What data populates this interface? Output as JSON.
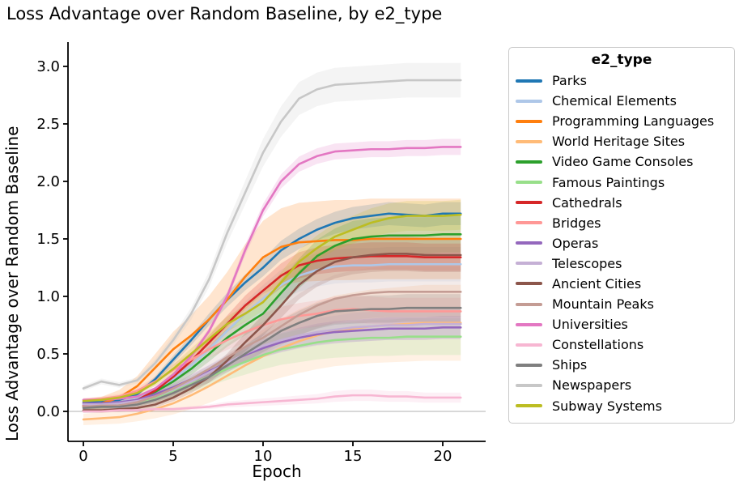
{
  "title": "Loss Advantage over Random Baseline, by e2_type",
  "colors": {
    "background": "#ffffff",
    "spine": "#000000",
    "baseline": "#b0b0b0",
    "legend_border": "#c9c9c9",
    "text": "#000000"
  },
  "chart_data": {
    "type": "line",
    "title": "Loss Advantage over Random Baseline, by e2_type",
    "xlabel": "Epoch",
    "ylabel": "Loss Advantage over Random Baseline",
    "legend_title": "e2_type",
    "legend_position": "right-outside",
    "grid": false,
    "baseline_y": 0,
    "band_alpha": 0.2,
    "xlim": [
      -0.9,
      22.4
    ],
    "ylim": [
      -0.26,
      3.21
    ],
    "x_ticks": [
      0,
      5,
      10,
      15,
      20
    ],
    "x_tick_labels": [
      "0",
      "5",
      "10",
      "15",
      "20"
    ],
    "y_ticks": [
      0.0,
      0.5,
      1.0,
      1.5,
      2.0,
      2.5,
      3.0
    ],
    "y_tick_labels": [
      "0.0",
      "0.5",
      "1.0",
      "1.5",
      "2.0",
      "2.5",
      "3.0"
    ],
    "x": [
      0,
      1,
      2,
      3,
      4,
      5,
      6,
      7,
      8,
      9,
      10,
      11,
      12,
      13,
      14,
      15,
      16,
      17,
      18,
      19,
      20,
      21
    ],
    "series": [
      {
        "name": "Parks",
        "color": "#1f77b4",
        "band": 0.1,
        "values": [
          0.08,
          0.09,
          0.1,
          0.15,
          0.28,
          0.45,
          0.62,
          0.8,
          0.97,
          1.12,
          1.25,
          1.4,
          1.5,
          1.58,
          1.64,
          1.68,
          1.7,
          1.72,
          1.71,
          1.7,
          1.72,
          1.72
        ]
      },
      {
        "name": "Chemical Elements",
        "color": "#aec7e8",
        "band": 0.15,
        "values": [
          0.06,
          0.07,
          0.08,
          0.11,
          0.18,
          0.28,
          0.4,
          0.54,
          0.7,
          0.85,
          0.98,
          1.1,
          1.18,
          1.23,
          1.26,
          1.27,
          1.27,
          1.28,
          1.28,
          1.28,
          1.28,
          1.28
        ]
      },
      {
        "name": "Programming Languages",
        "color": "#ff7f0e",
        "band": 0.35,
        "values": [
          0.05,
          0.07,
          0.12,
          0.22,
          0.38,
          0.54,
          0.66,
          0.8,
          0.97,
          1.17,
          1.34,
          1.43,
          1.47,
          1.48,
          1.49,
          1.49,
          1.5,
          1.5,
          1.5,
          1.5,
          1.5,
          1.5
        ]
      },
      {
        "name": "World Heritage Sites",
        "color": "#ffbb78",
        "band": 0.33,
        "values": [
          -0.07,
          -0.06,
          -0.05,
          -0.02,
          0.02,
          0.07,
          0.14,
          0.22,
          0.31,
          0.4,
          0.48,
          0.55,
          0.61,
          0.66,
          0.7,
          0.72,
          0.74,
          0.75,
          0.76,
          0.77,
          0.77,
          0.77
        ]
      },
      {
        "name": "Video Game Consoles",
        "color": "#2ca02c",
        "band": 0.16,
        "values": [
          0.04,
          0.05,
          0.06,
          0.1,
          0.17,
          0.26,
          0.37,
          0.5,
          0.64,
          0.75,
          0.85,
          1.03,
          1.2,
          1.35,
          1.44,
          1.5,
          1.52,
          1.53,
          1.53,
          1.53,
          1.54,
          1.54
        ]
      },
      {
        "name": "Famous Paintings",
        "color": "#98df8a",
        "band": 0.16,
        "values": [
          0.05,
          0.05,
          0.06,
          0.08,
          0.12,
          0.18,
          0.24,
          0.3,
          0.37,
          0.43,
          0.49,
          0.54,
          0.57,
          0.6,
          0.62,
          0.63,
          0.64,
          0.64,
          0.65,
          0.65,
          0.65,
          0.65
        ]
      },
      {
        "name": "Cathedrals",
        "color": "#d62728",
        "band": 0.12,
        "values": [
          0.05,
          0.06,
          0.07,
          0.1,
          0.18,
          0.3,
          0.44,
          0.6,
          0.76,
          0.92,
          1.05,
          1.18,
          1.27,
          1.31,
          1.33,
          1.34,
          1.35,
          1.35,
          1.35,
          1.34,
          1.34,
          1.34
        ]
      },
      {
        "name": "Bridges",
        "color": "#ff9896",
        "band": 0.12,
        "values": [
          0.1,
          0.11,
          0.13,
          0.18,
          0.26,
          0.36,
          0.45,
          0.54,
          0.62,
          0.69,
          0.75,
          0.8,
          0.83,
          0.85,
          0.88,
          0.89,
          0.88,
          0.87,
          0.87,
          0.87,
          0.87,
          0.87
        ]
      },
      {
        "name": "Operas",
        "color": "#9467bd",
        "band": 0.1,
        "values": [
          0.07,
          0.07,
          0.08,
          0.1,
          0.15,
          0.21,
          0.28,
          0.35,
          0.42,
          0.49,
          0.55,
          0.6,
          0.64,
          0.67,
          0.69,
          0.7,
          0.71,
          0.72,
          0.72,
          0.72,
          0.73,
          0.73
        ]
      },
      {
        "name": "Telescopes",
        "color": "#c5b0d5",
        "band": 0.13,
        "values": [
          0.06,
          0.06,
          0.07,
          0.09,
          0.13,
          0.19,
          0.26,
          0.34,
          0.42,
          0.5,
          0.57,
          0.62,
          0.66,
          0.69,
          0.71,
          0.73,
          0.74,
          0.75,
          0.75,
          0.76,
          0.76,
          0.76
        ]
      },
      {
        "name": "Ancient Cities",
        "color": "#8c564b",
        "band": 0.15,
        "values": [
          0.01,
          0.01,
          0.02,
          0.03,
          0.06,
          0.12,
          0.2,
          0.3,
          0.44,
          0.6,
          0.75,
          0.92,
          1.1,
          1.22,
          1.3,
          1.34,
          1.36,
          1.37,
          1.37,
          1.36,
          1.36,
          1.36
        ]
      },
      {
        "name": "Mountain Peaks",
        "color": "#c49c94",
        "band": 0.22,
        "values": [
          0.04,
          0.05,
          0.05,
          0.08,
          0.13,
          0.2,
          0.28,
          0.37,
          0.47,
          0.56,
          0.64,
          0.74,
          0.84,
          0.92,
          0.98,
          1.01,
          1.03,
          1.04,
          1.04,
          1.04,
          1.04,
          1.04
        ]
      },
      {
        "name": "Universities",
        "color": "#e377c2",
        "band": 0.07,
        "values": [
          0.1,
          0.1,
          0.11,
          0.13,
          0.2,
          0.32,
          0.48,
          0.7,
          1.0,
          1.4,
          1.75,
          2.0,
          2.15,
          2.22,
          2.26,
          2.27,
          2.28,
          2.28,
          2.29,
          2.29,
          2.3,
          2.3
        ]
      },
      {
        "name": "Constellations",
        "color": "#f7b6d2",
        "band": 0.05,
        "values": [
          0.0,
          0.0,
          0.01,
          0.01,
          0.02,
          0.02,
          0.03,
          0.04,
          0.06,
          0.07,
          0.08,
          0.09,
          0.1,
          0.11,
          0.13,
          0.14,
          0.14,
          0.13,
          0.13,
          0.12,
          0.12,
          0.12
        ]
      },
      {
        "name": "Ships",
        "color": "#7f7f7f",
        "band": 0.12,
        "values": [
          0.03,
          0.04,
          0.04,
          0.06,
          0.1,
          0.16,
          0.23,
          0.3,
          0.4,
          0.5,
          0.6,
          0.7,
          0.77,
          0.83,
          0.87,
          0.88,
          0.89,
          0.89,
          0.9,
          0.9,
          0.9,
          0.9
        ]
      },
      {
        "name": "Newspapers",
        "color": "#c7c7c7",
        "band": 0.15,
        "values": [
          0.2,
          0.26,
          0.23,
          0.27,
          0.42,
          0.62,
          0.85,
          1.15,
          1.55,
          1.9,
          2.25,
          2.52,
          2.72,
          2.8,
          2.84,
          2.85,
          2.86,
          2.87,
          2.88,
          2.88,
          2.88,
          2.88
        ]
      },
      {
        "name": "Subway Systems",
        "color": "#bcbd22",
        "band": 0.13,
        "values": [
          0.09,
          0.1,
          0.12,
          0.16,
          0.25,
          0.37,
          0.5,
          0.63,
          0.76,
          0.85,
          0.95,
          1.12,
          1.3,
          1.42,
          1.52,
          1.58,
          1.64,
          1.68,
          1.7,
          1.7,
          1.7,
          1.71
        ]
      }
    ]
  }
}
